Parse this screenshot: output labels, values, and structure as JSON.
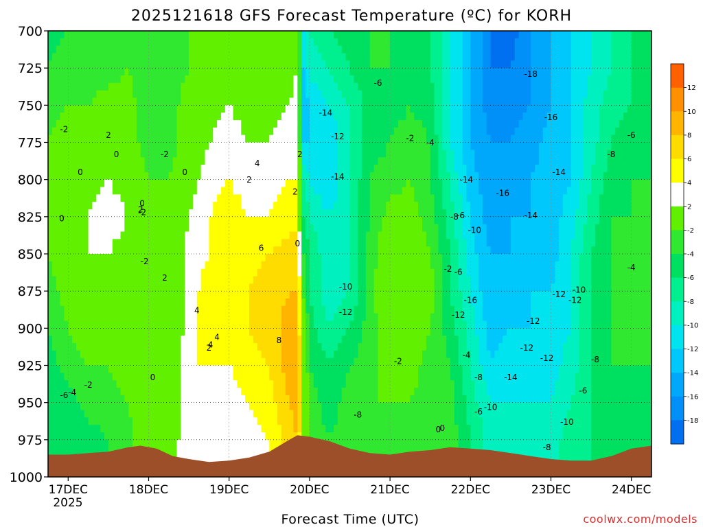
{
  "chart_data": {
    "type": "heatmap",
    "title": "2025121618 GFS Forecast Temperature (ºC) for KORH",
    "xlabel": "Forecast Time (UTC)",
    "credit": "coolwx.com/models",
    "x_ticks": [
      "17DEC",
      "18DEC",
      "19DEC",
      "20DEC",
      "21DEC",
      "22DEC",
      "23DEC",
      "24DEC"
    ],
    "x_year_label": "2025",
    "y_ticks": [
      "700",
      "725",
      "750",
      "775",
      "800",
      "825",
      "850",
      "875",
      "900",
      "925",
      "950",
      "975",
      "1000"
    ],
    "yrange_hpa": [
      700,
      1000
    ],
    "xrange_days": [
      -0.25,
      7.25
    ],
    "colorbar": {
      "levels": [
        -20,
        -18,
        -16,
        -14,
        -12,
        -10,
        -8,
        -6,
        -4,
        -2,
        2,
        4,
        6,
        8,
        10,
        12,
        14
      ],
      "labels": [
        "12",
        "10",
        "8",
        "6",
        "4",
        "2",
        "-2",
        "-4",
        "-6",
        "-8",
        "-10",
        "-12",
        "-14",
        "-16",
        "-18"
      ],
      "colors": [
        "#0070f0",
        "#0090f8",
        "#00a8fc",
        "#00c8fc",
        "#00e4f0",
        "#00f0c0",
        "#00f090",
        "#00e060",
        "#30e830",
        "#60f000",
        "#ffffff",
        "#ffff00",
        "#ffdc00",
        "#ffb400",
        "#ff9000",
        "#ff6000"
      ]
    },
    "contour_labels": [
      "0",
      "-2",
      "2",
      "0",
      "-2",
      "0",
      "2",
      "2",
      "0",
      "2",
      "2",
      "4",
      "0",
      "0",
      "-2",
      "2",
      "4",
      "6",
      "-2",
      "4",
      "4",
      "8",
      "2",
      "0",
      "-2",
      "-4",
      "-6",
      "-6",
      "-14",
      "-12",
      "-14",
      "-10",
      "-12",
      "-8",
      "-2",
      "-4",
      "-2",
      "0",
      "-2",
      "-14",
      "-6",
      "-8",
      "-10",
      "-6",
      "-12",
      "-4",
      "-8",
      "-6",
      "0",
      "-16",
      "-18",
      "-12",
      "-16",
      "-14",
      "-16",
      "-14",
      "-12",
      "-12",
      "-12",
      "-14",
      "-10",
      "-10",
      "-8",
      "-8",
      "-12",
      "-10",
      "-8",
      "-6",
      "-4",
      "-6"
    ],
    "vertical_profiles": [
      {
        "day": -0.25,
        "temps": [
          -5,
          -4,
          -3,
          -2,
          -1,
          -1,
          -2,
          -3,
          -4,
          -5,
          -6,
          -6,
          -6
        ]
      },
      {
        "day": 0.0,
        "temps": [
          -4,
          -3,
          -2,
          -1,
          0,
          1,
          0,
          -1,
          -2,
          -3,
          -5,
          -6,
          -6
        ]
      },
      {
        "day": 0.25,
        "temps": [
          -4,
          -3,
          -2,
          0,
          1,
          2,
          2,
          1,
          -1,
          -2,
          -3,
          -5,
          -5
        ]
      },
      {
        "day": 0.5,
        "temps": [
          -4,
          -3,
          -1,
          1,
          2,
          3,
          2,
          0,
          -1,
          -2,
          -3,
          -4,
          -4
        ]
      },
      {
        "day": 0.75,
        "temps": [
          -3,
          -2,
          -1,
          0,
          1,
          2,
          1,
          0,
          -1,
          -1,
          -2,
          -3,
          -3
        ]
      },
      {
        "day": 1.0,
        "temps": [
          -4,
          -3,
          -4,
          -4,
          -2,
          -2,
          -2,
          -2,
          0,
          1,
          2,
          2,
          2
        ]
      },
      {
        "day": 1.25,
        "temps": [
          -4,
          -3,
          -3,
          -3,
          -2,
          -1,
          -2,
          -1,
          -1,
          0,
          0,
          1,
          1
        ]
      },
      {
        "day": 1.5,
        "temps": [
          -2,
          -2,
          -1,
          -1,
          1,
          2,
          3,
          3,
          3,
          4,
          3,
          3,
          3
        ]
      },
      {
        "day": 1.75,
        "temps": [
          -1,
          0,
          1,
          2,
          3,
          4,
          4,
          5,
          5,
          4,
          3,
          2,
          2
        ]
      },
      {
        "day": 2.0,
        "temps": [
          -1,
          0,
          2,
          3,
          4,
          5,
          5,
          5,
          5,
          4,
          3,
          2,
          2
        ]
      },
      {
        "day": 2.25,
        "temps": [
          -1,
          0,
          1,
          2,
          3,
          4,
          5,
          6,
          6,
          5,
          4,
          3,
          3
        ]
      },
      {
        "day": 2.5,
        "temps": [
          -1,
          0,
          1,
          2,
          3,
          4,
          6,
          7,
          7,
          6,
          5,
          4,
          4
        ]
      },
      {
        "day": 2.75,
        "temps": [
          0,
          1,
          2,
          3,
          4,
          5,
          7,
          8,
          9,
          9,
          8,
          7,
          7
        ]
      },
      {
        "day": 2.85,
        "temps": [
          1,
          2,
          3,
          3,
          4,
          5,
          7,
          8,
          9,
          10,
          9,
          8,
          8
        ]
      },
      {
        "day": 2.92,
        "temps": [
          -10,
          -12,
          -14,
          -12,
          -8,
          -6,
          -4,
          -2,
          0,
          2,
          2,
          2,
          2
        ]
      },
      {
        "day": 3.0,
        "temps": [
          -8,
          -9,
          -12,
          -12,
          -10,
          -8,
          -6,
          -6,
          -5,
          -4,
          -3,
          -3,
          -3
        ]
      },
      {
        "day": 3.25,
        "temps": [
          -6,
          -8,
          -10,
          -12,
          -12,
          -10,
          -10,
          -10,
          -8,
          -6,
          -5,
          -4,
          -4
        ]
      },
      {
        "day": 3.5,
        "temps": [
          -5,
          -6,
          -8,
          -8,
          -8,
          -8,
          -8,
          -8,
          -6,
          -4,
          -3,
          -3,
          -3
        ]
      },
      {
        "day": 3.75,
        "temps": [
          -4,
          -4,
          -5,
          -5,
          -4,
          -4,
          -3,
          -3,
          -3,
          -3,
          -2,
          -3,
          -3
        ]
      },
      {
        "day": 4.0,
        "temps": [
          -4,
          -4,
          -5,
          -4,
          -3,
          -1,
          0,
          1,
          0,
          -1,
          -2,
          -3,
          -3
        ]
      },
      {
        "day": 4.25,
        "temps": [
          -5,
          -5,
          -4,
          -3,
          -2,
          -1,
          0,
          1,
          1,
          -1,
          -2,
          -3,
          -3
        ]
      },
      {
        "day": 4.5,
        "temps": [
          -6,
          -6,
          -5,
          -4,
          -4,
          -3,
          -2,
          -1,
          -2,
          -3,
          -3,
          -3,
          -3
        ]
      },
      {
        "day": 4.75,
        "temps": [
          -10,
          -10,
          -10,
          -10,
          -8,
          -7,
          -6,
          -6,
          -5,
          -4,
          -3,
          -3,
          -3
        ]
      },
      {
        "day": 5.0,
        "temps": [
          -14,
          -14,
          -14,
          -14,
          -13,
          -12,
          -11,
          -10,
          -9,
          -8,
          -7,
          -6,
          -6
        ]
      },
      {
        "day": 5.25,
        "temps": [
          -18,
          -18,
          -17,
          -16,
          -16,
          -15,
          -14,
          -14,
          -13,
          -12,
          -10,
          -9,
          -9
        ]
      },
      {
        "day": 5.5,
        "temps": [
          -19,
          -18,
          -17,
          -16,
          -15,
          -14,
          -14,
          -13,
          -12,
          -11,
          -10,
          -9,
          -9
        ]
      },
      {
        "day": 5.75,
        "temps": [
          -16,
          -16,
          -16,
          -15,
          -14,
          -14,
          -13,
          -12,
          -12,
          -11,
          -10,
          -9,
          -9
        ]
      },
      {
        "day": 6.0,
        "temps": [
          -14,
          -14,
          -14,
          -13,
          -13,
          -13,
          -13,
          -12,
          -11,
          -11,
          -10,
          -9,
          -9
        ]
      },
      {
        "day": 6.25,
        "temps": [
          -12,
          -12,
          -12,
          -12,
          -12,
          -11,
          -10,
          -10,
          -10,
          -9,
          -8,
          -7,
          -7
        ]
      },
      {
        "day": 6.5,
        "temps": [
          -10,
          -10,
          -9,
          -9,
          -8,
          -7,
          -6,
          -6,
          -6,
          -6,
          -6,
          -6,
          -6
        ]
      },
      {
        "day": 6.75,
        "temps": [
          -8,
          -8,
          -7,
          -6,
          -5,
          -4,
          -4,
          -4,
          -4,
          -4,
          -4,
          -4,
          -4
        ]
      },
      {
        "day": 7.0,
        "temps": [
          -6,
          -6,
          -6,
          -5,
          -4,
          -4,
          -4,
          -3,
          -3,
          -4,
          -5,
          -5,
          -5
        ]
      },
      {
        "day": 7.25,
        "temps": [
          -5,
          -5,
          -5,
          -4,
          -4,
          -4,
          -4,
          -3,
          -3,
          -4,
          -5,
          -5,
          -5
        ]
      }
    ],
    "surface_pressure": [
      {
        "day": -0.25,
        "hpa": 985
      },
      {
        "day": 0.0,
        "hpa": 985
      },
      {
        "day": 0.25,
        "hpa": 984
      },
      {
        "day": 0.5,
        "hpa": 983
      },
      {
        "day": 0.75,
        "hpa": 980
      },
      {
        "day": 0.9,
        "hpa": 979
      },
      {
        "day": 1.1,
        "hpa": 981
      },
      {
        "day": 1.3,
        "hpa": 986
      },
      {
        "day": 1.5,
        "hpa": 988
      },
      {
        "day": 1.75,
        "hpa": 990
      },
      {
        "day": 2.0,
        "hpa": 989
      },
      {
        "day": 2.25,
        "hpa": 987
      },
      {
        "day": 2.5,
        "hpa": 983
      },
      {
        "day": 2.75,
        "hpa": 975
      },
      {
        "day": 2.85,
        "hpa": 972
      },
      {
        "day": 3.0,
        "hpa": 973
      },
      {
        "day": 3.25,
        "hpa": 976
      },
      {
        "day": 3.5,
        "hpa": 981
      },
      {
        "day": 3.75,
        "hpa": 984
      },
      {
        "day": 4.0,
        "hpa": 985
      },
      {
        "day": 4.25,
        "hpa": 983
      },
      {
        "day": 4.5,
        "hpa": 982
      },
      {
        "day": 4.75,
        "hpa": 980
      },
      {
        "day": 5.0,
        "hpa": 981
      },
      {
        "day": 5.25,
        "hpa": 982
      },
      {
        "day": 5.5,
        "hpa": 984
      },
      {
        "day": 5.75,
        "hpa": 986
      },
      {
        "day": 6.0,
        "hpa": 988
      },
      {
        "day": 6.25,
        "hpa": 989
      },
      {
        "day": 6.5,
        "hpa": 989
      },
      {
        "day": 6.75,
        "hpa": 986
      },
      {
        "day": 7.0,
        "hpa": 981
      },
      {
        "day": 7.25,
        "hpa": 979
      }
    ]
  }
}
